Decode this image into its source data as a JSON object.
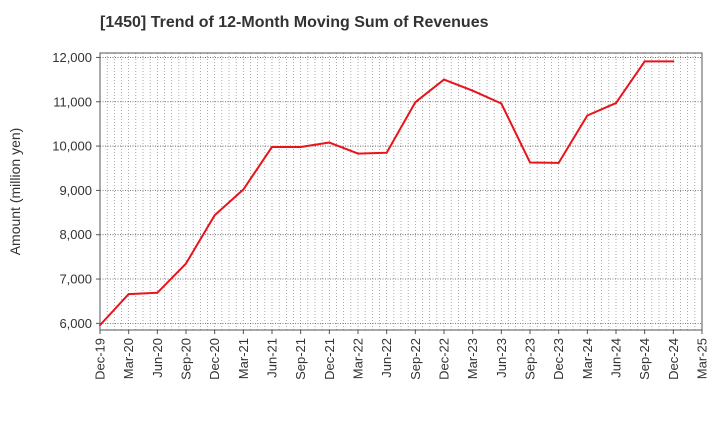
{
  "chart_data": {
    "type": "line",
    "title": "[1450]  Trend of 12-Month Moving Sum of Revenues",
    "xlabel": "",
    "ylabel": "Amount (million yen)",
    "ylim": [
      5850,
      12100
    ],
    "grid": true,
    "yticks": [
      6000,
      7000,
      8000,
      9000,
      10000,
      11000,
      12000
    ],
    "ytick_labels": [
      "6,000",
      "7,000",
      "8,000",
      "9,000",
      "10,000",
      "11,000",
      "12,000"
    ],
    "categories": [
      "Dec-19",
      "Mar-20",
      "Jun-20",
      "Sep-20",
      "Dec-20",
      "Mar-21",
      "Jun-21",
      "Sep-21",
      "Dec-21",
      "Mar-22",
      "Jun-22",
      "Sep-22",
      "Dec-22",
      "Mar-23",
      "Jun-23",
      "Sep-23",
      "Dec-23",
      "Mar-24",
      "Jun-24",
      "Sep-24",
      "Dec-24",
      "Mar-25"
    ],
    "series": [
      {
        "color": "#e8141c",
        "values": [
          5960,
          6660,
          6690,
          7350,
          8440,
          9020,
          9980,
          9980,
          10080,
          9830,
          9850,
          10990,
          11500,
          11250,
          10960,
          9630,
          9620,
          10690,
          10970,
          11910,
          11910,
          null
        ]
      }
    ]
  }
}
